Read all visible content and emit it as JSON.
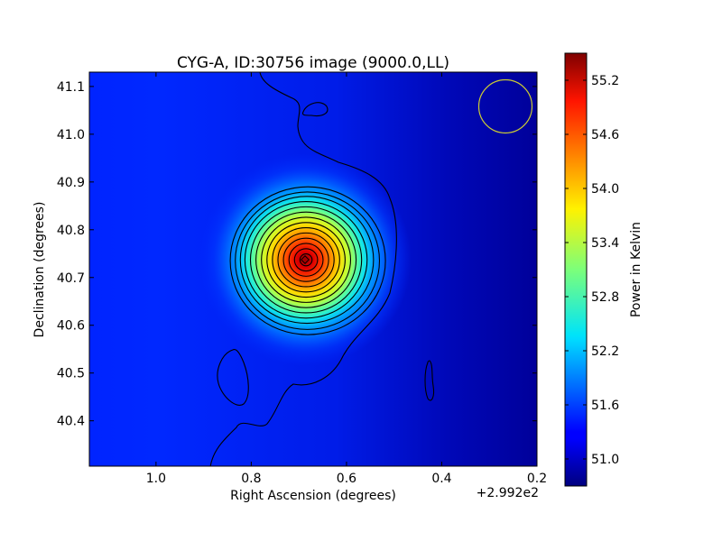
{
  "chart_data": {
    "type": "heatmap",
    "title": "CYG-A, ID:30756 image (9000.0,LL)",
    "xlabel": "Right Ascension (degrees)",
    "ylabel": "Declination (degrees)",
    "x_offset_label": "+2.992e2",
    "xlim": [
      1.14,
      0.2
    ],
    "ylim": [
      40.305,
      41.13
    ],
    "x_ticks": [
      {
        "value": 1.0,
        "label": "1.0"
      },
      {
        "value": 0.8,
        "label": "0.8"
      },
      {
        "value": 0.6,
        "label": "0.6"
      },
      {
        "value": 0.4,
        "label": "0.4"
      },
      {
        "value": 0.2,
        "label": "0.2"
      }
    ],
    "y_ticks": [
      {
        "value": 40.4,
        "label": "40.4"
      },
      {
        "value": 40.5,
        "label": "40.5"
      },
      {
        "value": 40.6,
        "label": "40.6"
      },
      {
        "value": 40.7,
        "label": "40.7"
      },
      {
        "value": 40.8,
        "label": "40.8"
      },
      {
        "value": 40.9,
        "label": "40.9"
      },
      {
        "value": 41.0,
        "label": "41.0"
      },
      {
        "value": 41.1,
        "label": "41.1"
      }
    ],
    "colormap": "jet",
    "colorbar": {
      "label": "Power in Kelvin",
      "range": [
        50.7,
        55.5
      ],
      "ticks": [
        {
          "value": 51.0,
          "label": "51.0"
        },
        {
          "value": 51.6,
          "label": "51.6"
        },
        {
          "value": 52.2,
          "label": "52.2"
        },
        {
          "value": 52.8,
          "label": "52.8"
        },
        {
          "value": 53.4,
          "label": "53.4"
        },
        {
          "value": 54.0,
          "label": "54.0"
        },
        {
          "value": 54.6,
          "label": "54.6"
        },
        {
          "value": 55.2,
          "label": "55.2"
        }
      ]
    },
    "source": {
      "ra": 0.685,
      "dec": 40.737,
      "peak": 55.5,
      "background": 51.0
    },
    "contour_count": 14,
    "beam_circle": {
      "ra": 0.265,
      "dec": 41.058,
      "color": "#cccc33"
    },
    "peak_marker": {
      "ra": 0.685,
      "dec": 40.737
    }
  }
}
